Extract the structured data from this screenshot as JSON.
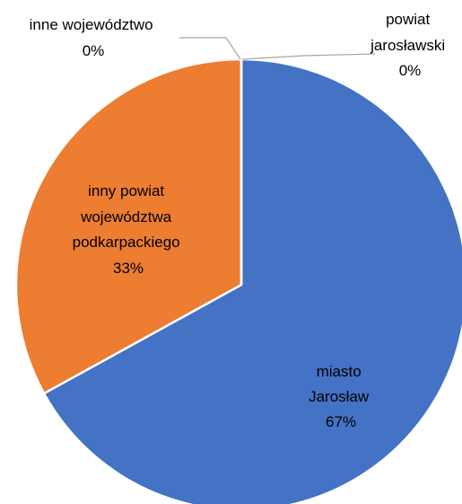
{
  "chart_data": {
    "type": "pie",
    "title": "",
    "slices": [
      {
        "label_lines": [
          "miasto",
          "Jarosław"
        ],
        "value": 67,
        "value_label": "67%",
        "color": "#4472C4"
      },
      {
        "label_lines": [
          "inny powiat",
          "województwa",
          "podkarpackiego"
        ],
        "value": 33,
        "value_label": "33%",
        "color": "#ED7D31"
      },
      {
        "label_lines": [
          "inne województwo"
        ],
        "value": 0,
        "value_label": "0%",
        "color": "#A5A5A5"
      },
      {
        "label_lines": [
          "powiat",
          "jarosławski"
        ],
        "value": 0,
        "value_label": "0%",
        "color": "#FFC000"
      }
    ],
    "legend": "none",
    "slice_border_color": "#ffffff",
    "leader_line_color": "#A6A6A6"
  }
}
